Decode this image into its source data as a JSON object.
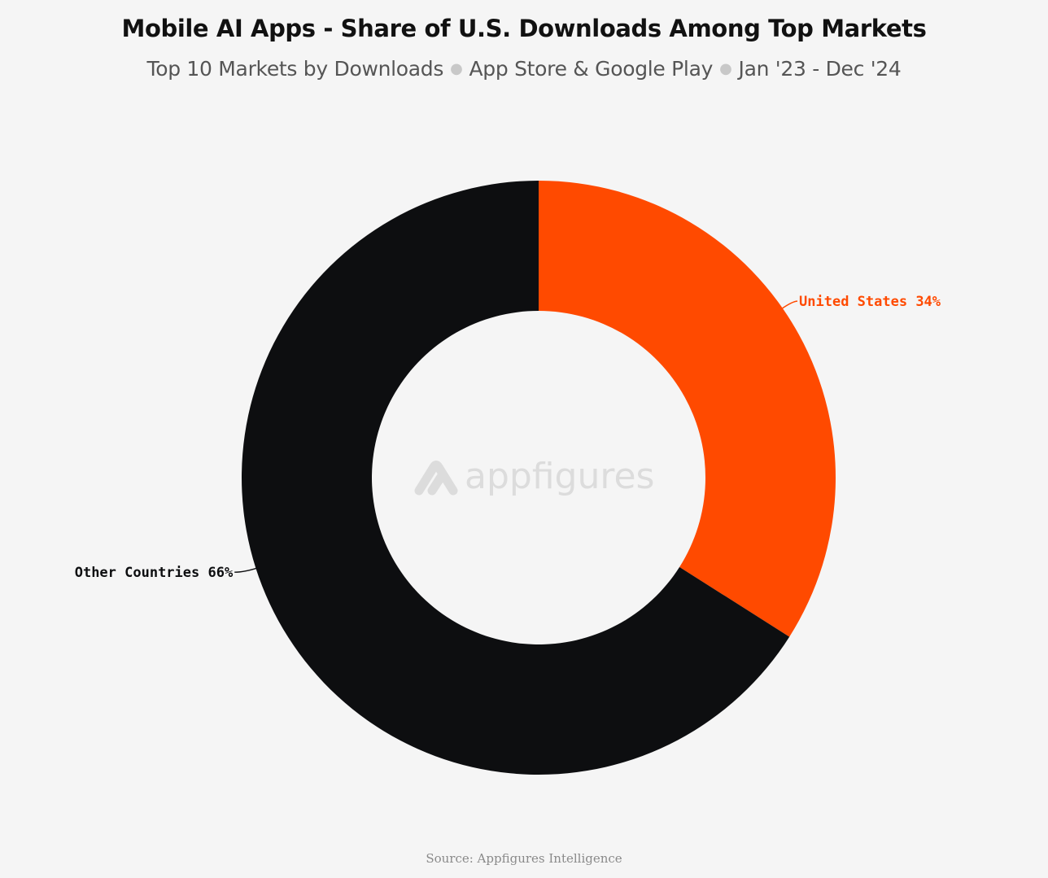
{
  "header": {
    "title": "Mobile AI Apps - Share of U.S. Downloads Among Top Markets",
    "subtitle_parts": [
      "Top 10 Markets by Downloads",
      "App Store & Google Play",
      "Jan '23 - Dec '24"
    ]
  },
  "watermark": {
    "text": "appfigures",
    "icon": "appfigures-logo-icon"
  },
  "footer": {
    "source": "Source: Appfigures Intelligence"
  },
  "chart_data": {
    "type": "pie",
    "donut": true,
    "title": "Mobile AI Apps - Share of U.S. Downloads Among Top Markets",
    "subtitle": "Top 10 Markets by Downloads · App Store & Google Play · Jan '23 - Dec '24",
    "slices": [
      {
        "label": "United States",
        "value": 34,
        "display": "United States 34%",
        "color": "#ff4a00"
      },
      {
        "label": "Other Countries",
        "value": 66,
        "display": "Other Countries 66%",
        "color": "#0d0e10"
      }
    ],
    "unit": "%"
  }
}
